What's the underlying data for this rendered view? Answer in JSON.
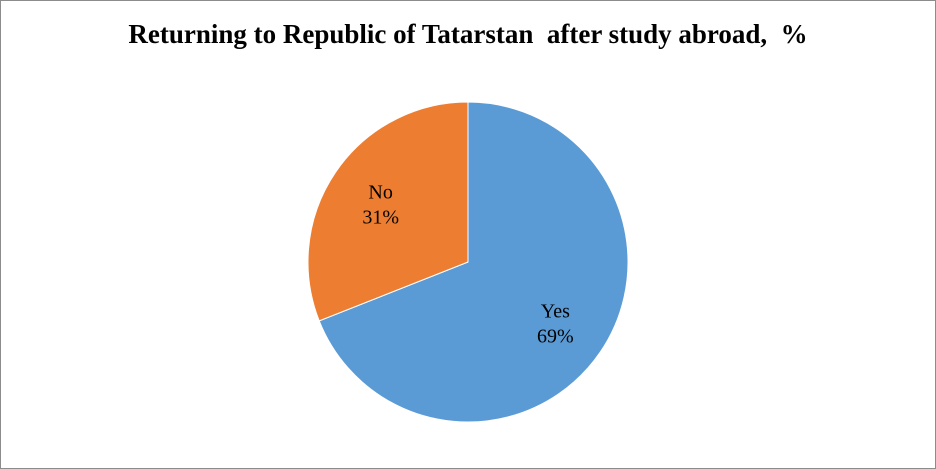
{
  "chart_data": {
    "type": "pie",
    "title": "Returning to Republic of Tatarstan  after study abroad,  %",
    "categories": [
      "Yes",
      "No"
    ],
    "values": [
      69,
      31
    ],
    "labels": [
      "69%",
      "31%"
    ],
    "colors": [
      "#5b9bd5",
      "#ed7d31"
    ],
    "start_angle": "12 o'clock",
    "direction": "clockwise",
    "legend": "none",
    "data_labels": "category and percent inside slices"
  }
}
